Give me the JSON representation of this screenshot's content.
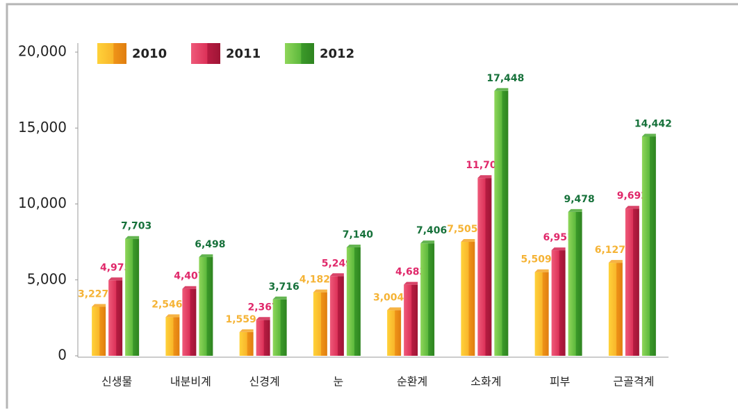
{
  "chart_data": {
    "type": "bar",
    "categories": [
      "신생물",
      "내분비계",
      "신경계",
      "눈",
      "순환계",
      "소화계",
      "피부",
      "근골격계"
    ],
    "series": [
      {
        "name": "2010",
        "color": "#f5a623",
        "label_color": "#f5b335",
        "values": [
          3227,
          2546,
          1559,
          4182,
          3004,
          7505,
          5509,
          6127
        ],
        "value_labels": [
          "3,227",
          "2,546",
          "1,559",
          "4,182",
          "3,004",
          "7,505",
          "5,509",
          "6,127"
        ]
      },
      {
        "name": "2011",
        "color": "#d2234f",
        "label_color": "#e0286a",
        "values": [
          4975,
          4407,
          2367,
          5249,
          4683,
          11709,
          6951,
          9692
        ],
        "value_labels": [
          "4,975",
          "4,407",
          "2,367",
          "5,249",
          "4,683",
          "11,709",
          "6,951",
          "9,692"
        ]
      },
      {
        "name": "2012",
        "color": "#4aa834",
        "label_color": "#16713a",
        "values": [
          7703,
          6498,
          3716,
          7140,
          7406,
          17448,
          9478,
          14442
        ],
        "value_labels": [
          "7,703",
          "6,498",
          "3,716",
          "7,140",
          "7,406",
          "17,448",
          "9,478",
          "14,442"
        ]
      }
    ],
    "ylim": [
      0,
      20000
    ],
    "yticks": [
      0,
      {
        "value": 5000,
        "label": "5,000"
      },
      {
        "value": 10000,
        "label": "10,000"
      },
      {
        "value": 15000,
        "label": "15,000"
      },
      {
        "value": 20000,
        "label": "20,000"
      }
    ],
    "grid": false,
    "legend": "top-left"
  }
}
